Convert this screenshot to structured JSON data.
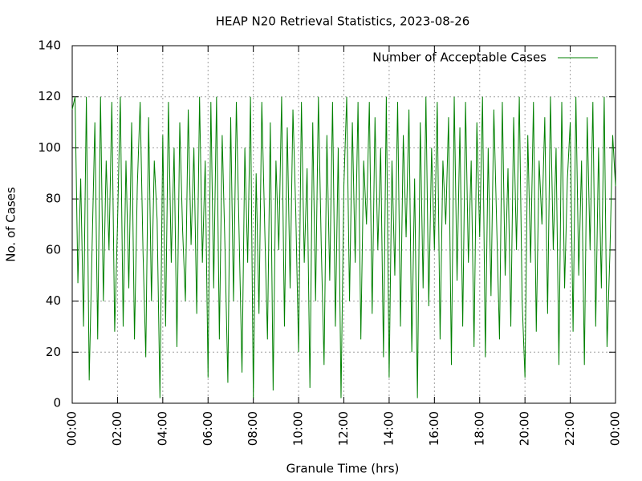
{
  "chart_data": {
    "type": "line",
    "title": "HEAP N20 Retrieval Statistics, 2023-08-26",
    "x_label": "Granule Time (hrs)",
    "y_label": "No. of Cases",
    "x": [
      0,
      0.125,
      0.25,
      0.375,
      0.5,
      0.625,
      0.75,
      0.875,
      1,
      1.125,
      1.25,
      1.375,
      1.5,
      1.625,
      1.75,
      1.875,
      2,
      2.125,
      2.25,
      2.375,
      2.5,
      2.625,
      2.75,
      2.875,
      3,
      3.125,
      3.25,
      3.375,
      3.5,
      3.625,
      3.75,
      3.875,
      4,
      4.125,
      4.25,
      4.375,
      4.5,
      4.625,
      4.75,
      4.875,
      5,
      5.125,
      5.25,
      5.375,
      5.5,
      5.625,
      5.75,
      5.875,
      6,
      6.125,
      6.25,
      6.375,
      6.5,
      6.625,
      6.75,
      6.875,
      7,
      7.125,
      7.25,
      7.375,
      7.5,
      7.625,
      7.75,
      7.875,
      8,
      8.125,
      8.25,
      8.375,
      8.5,
      8.625,
      8.75,
      8.875,
      9,
      9.125,
      9.25,
      9.375,
      9.5,
      9.625,
      9.75,
      9.875,
      10,
      10.125,
      10.25,
      10.375,
      10.5,
      10.625,
      10.75,
      10.875,
      11,
      11.125,
      11.25,
      11.375,
      11.5,
      11.625,
      11.75,
      11.875,
      12,
      12.125,
      12.25,
      12.375,
      12.5,
      12.625,
      12.75,
      12.875,
      13,
      13.125,
      13.25,
      13.375,
      13.5,
      13.625,
      13.75,
      13.875,
      14,
      14.125,
      14.25,
      14.375,
      14.5,
      14.625,
      14.75,
      14.875,
      15,
      15.125,
      15.25,
      15.375,
      15.5,
      15.625,
      15.75,
      15.875,
      16,
      16.125,
      16.25,
      16.375,
      16.5,
      16.625,
      16.75,
      16.875,
      17,
      17.125,
      17.25,
      17.375,
      17.5,
      17.625,
      17.75,
      17.875,
      18,
      18.125,
      18.25,
      18.375,
      18.5,
      18.625,
      18.75,
      18.875,
      19,
      19.125,
      19.25,
      19.375,
      19.5,
      19.625,
      19.75,
      19.875,
      20,
      20.125,
      20.25,
      20.375,
      20.5,
      20.625,
      20.75,
      20.875,
      21,
      21.125,
      21.25,
      21.375,
      21.5,
      21.625,
      21.75,
      21.875,
      22,
      22.125,
      22.25,
      22.375,
      22.5,
      22.625,
      22.75,
      22.875,
      23,
      23.125,
      23.25,
      23.375,
      23.5,
      23.625,
      23.75,
      23.875,
      24
    ],
    "series": [
      {
        "name": "Number of Acceptable Cases",
        "color": "#008000",
        "values": [
          115,
          120,
          47,
          88,
          30,
          120,
          9,
          60,
          110,
          25,
          120,
          40,
          95,
          60,
          118,
          28,
          70,
          120,
          30,
          95,
          45,
          110,
          25,
          85,
          118,
          60,
          18,
          112,
          40,
          95,
          72,
          2,
          105,
          30,
          118,
          55,
          100,
          22,
          110,
          68,
          40,
          115,
          62,
          100,
          35,
          120,
          55,
          95,
          10,
          118,
          45,
          120,
          25,
          105,
          60,
          8,
          112,
          40,
          118,
          65,
          12,
          100,
          55,
          120,
          2,
          90,
          35,
          118,
          70,
          25,
          110,
          5,
          95,
          60,
          120,
          30,
          108,
          45,
          115,
          75,
          20,
          118,
          55,
          92,
          6,
          110,
          40,
          120,
          62,
          15,
          105,
          48,
          118,
          30,
          100,
          2,
          85,
          120,
          40,
          110,
          55,
          118,
          25,
          95,
          70,
          118,
          35,
          112,
          60,
          100,
          18,
          120,
          10,
          95,
          50,
          118,
          30,
          105,
          65,
          115,
          20,
          88,
          2,
          110,
          45,
          120,
          38,
          100,
          60,
          118,
          25,
          95,
          70,
          112,
          15,
          120,
          48,
          108,
          30,
          118,
          55,
          95,
          22,
          110,
          65,
          120,
          18,
          100,
          42,
          115,
          70,
          25,
          118,
          50,
          92,
          30,
          112,
          60,
          120,
          40,
          10,
          105,
          55,
          118,
          28,
          95,
          70,
          112,
          35,
          120,
          60,
          100,
          15,
          118,
          45,
          88,
          110,
          28,
          120,
          50,
          95,
          15,
          112,
          60,
          118,
          30,
          100,
          45,
          120,
          22,
          58,
          105,
          85
        ]
      }
    ],
    "xlim": [
      0,
      24
    ],
    "ylim": [
      0,
      140
    ],
    "xticks": [
      {
        "value": 0,
        "label": "00:00"
      },
      {
        "value": 2,
        "label": "02:00"
      },
      {
        "value": 4,
        "label": "04:00"
      },
      {
        "value": 6,
        "label": "06:00"
      },
      {
        "value": 8,
        "label": "08:00"
      },
      {
        "value": 10,
        "label": "10:00"
      },
      {
        "value": 12,
        "label": "12:00"
      },
      {
        "value": 14,
        "label": "14:00"
      },
      {
        "value": 16,
        "label": "16:00"
      },
      {
        "value": 18,
        "label": "18:00"
      },
      {
        "value": 20,
        "label": "20:00"
      },
      {
        "value": 22,
        "label": "22:00"
      },
      {
        "value": 24,
        "label": "00:00"
      }
    ],
    "yticks": [
      0,
      20,
      40,
      60,
      80,
      100,
      120,
      140
    ],
    "grid": true,
    "legend": "upper right"
  }
}
